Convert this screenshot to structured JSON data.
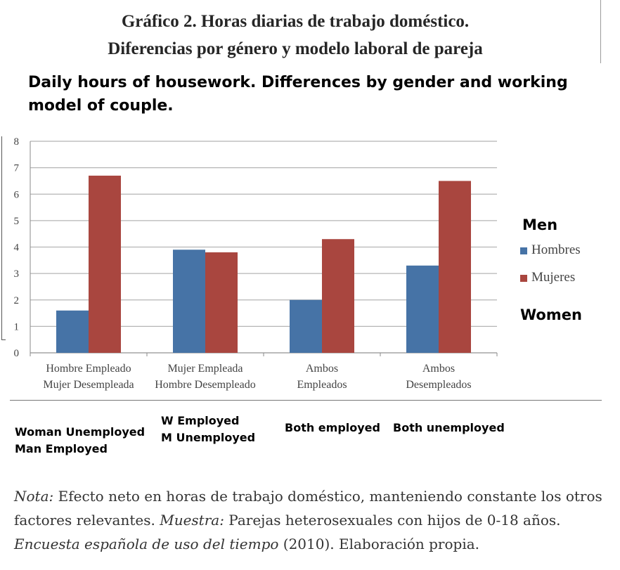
{
  "header": {
    "title_line1": "Gráfico 2. Horas diarias de trabajo doméstico.",
    "title_line2": "Diferencias por género y modelo laboral de pareja",
    "title_en": "Daily hours of housework. Differences by gender and working model of couple."
  },
  "annotations": {
    "men": "Men",
    "women": "Women",
    "categories_en": [
      "Woman Unemployed\nMan Employed",
      "W Employed\nM Unemployed",
      "Both employed",
      "Both unemployed"
    ]
  },
  "note": {
    "label1": "Nota:",
    "text1": " Efecto neto en horas de trabajo doméstico, manteniendo constante los otros factores relevantes. ",
    "label2": "Muestra:",
    "text2": " Parejas heterosexuales con hijos de 0-18 años. ",
    "source_italic": "Encuesta española de uso del tiempo",
    "source_rest": " (2010). Elaboración propia."
  },
  "colors": {
    "hombres": "#4673a6",
    "mujeres": "#a9463f",
    "grid": "#b5b5b5",
    "axis_text": "#444444"
  },
  "chart_data": {
    "type": "bar",
    "categories": [
      [
        "Hombre Empleado",
        "Mujer Desempleada"
      ],
      [
        "Mujer Empleada",
        "Hombre Desempleado"
      ],
      [
        "Ambos",
        "Empleados"
      ],
      [
        "Ambos",
        "Desempleados"
      ]
    ],
    "series": [
      {
        "name": "Hombres",
        "values": [
          1.6,
          3.9,
          2.0,
          3.3
        ]
      },
      {
        "name": "Mujeres",
        "values": [
          6.7,
          3.8,
          4.3,
          6.5
        ]
      }
    ],
    "ylim": [
      0,
      8
    ],
    "yticks": [
      0,
      1,
      2,
      3,
      4,
      5,
      6,
      7,
      8
    ],
    "grid": true,
    "legend": "right"
  }
}
